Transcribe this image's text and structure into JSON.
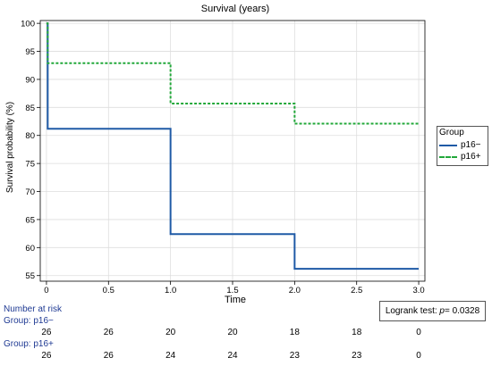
{
  "chart_data": {
    "type": "line",
    "subtype": "kaplan-meier-step",
    "title": "Survival (years)",
    "xlabel": "Time",
    "ylabel": "Survival probability (%)",
    "xlim": [
      -0.05,
      3.05
    ],
    "ylim": [
      54,
      100.5
    ],
    "xticks": [
      0,
      0.5,
      1.0,
      1.5,
      2.0,
      2.5,
      3.0
    ],
    "xtick_labels": [
      "0",
      "0.5",
      "1.0",
      "1.5",
      "2.0",
      "2.5",
      "3.0"
    ],
    "yticks": [
      55,
      60,
      65,
      70,
      75,
      80,
      85,
      90,
      95,
      100
    ],
    "grid": true,
    "legend_position": "right",
    "series": [
      {
        "name": "p16−",
        "color": "#1f5aa6",
        "style": "solid",
        "steps": [
          [
            0,
            100
          ],
          [
            0.01,
            81.2
          ],
          [
            1.0,
            62.4
          ],
          [
            2.0,
            56.2
          ],
          [
            3.0,
            56.2
          ]
        ]
      },
      {
        "name": "p16+",
        "color": "#22a83a",
        "style": "dashed",
        "steps": [
          [
            0,
            100
          ],
          [
            0.01,
            92.9
          ],
          [
            1.0,
            85.7
          ],
          [
            2.0,
            82.1
          ],
          [
            3.0,
            82.1
          ]
        ]
      }
    ]
  },
  "legend": {
    "title": "Group",
    "items": [
      {
        "label": "p16−"
      },
      {
        "label": "p16+"
      }
    ]
  },
  "logrank": {
    "prefix": "Logrank test: ",
    "p_symbol": "p",
    "value": "= 0.0328"
  },
  "risk_table": {
    "header": "Number at risk",
    "groups": [
      {
        "label": "Group: p16−",
        "values": [
          "26",
          "26",
          "20",
          "20",
          "18",
          "18",
          "0"
        ]
      },
      {
        "label": "Group: p16+",
        "values": [
          "26",
          "26",
          "24",
          "24",
          "23",
          "23",
          "0"
        ]
      }
    ]
  }
}
